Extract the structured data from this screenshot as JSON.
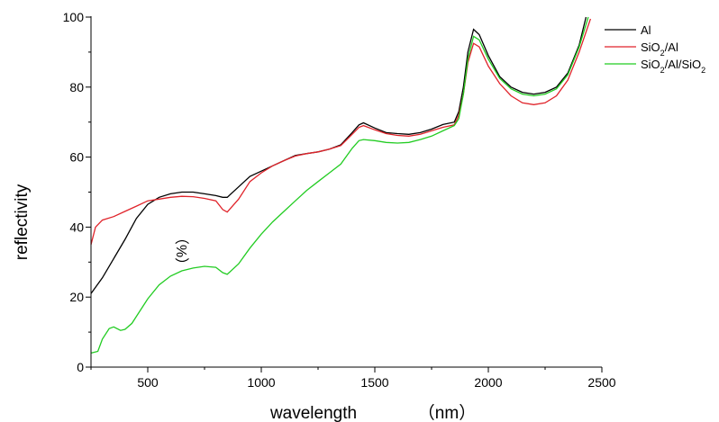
{
  "chart_data": {
    "type": "line",
    "title": "",
    "xlabel": "wavelength",
    "xunit": "（nm）",
    "ylabel": "reflectivity",
    "yunit": "（%）",
    "xlim": [
      250,
      2500
    ],
    "ylim": [
      0,
      100
    ],
    "xticks": [
      500,
      1000,
      1500,
      2000,
      2500
    ],
    "yticks": [
      0,
      20,
      40,
      60,
      80,
      100
    ],
    "grid": false,
    "legend_position": "top-right",
    "series": [
      {
        "name": "Al",
        "color": "#000000",
        "points": [
          [
            250,
            21
          ],
          [
            300,
            25.5
          ],
          [
            350,
            31
          ],
          [
            400,
            36.5
          ],
          [
            450,
            42.5
          ],
          [
            500,
            46.5
          ],
          [
            550,
            48.5
          ],
          [
            600,
            49.5
          ],
          [
            650,
            50
          ],
          [
            700,
            50
          ],
          [
            750,
            49.5
          ],
          [
            800,
            49
          ],
          [
            830,
            48.5
          ],
          [
            850,
            48.5
          ],
          [
            900,
            51.5
          ],
          [
            950,
            54.5
          ],
          [
            1000,
            56
          ],
          [
            1050,
            57.5
          ],
          [
            1100,
            59
          ],
          [
            1150,
            60.5
          ],
          [
            1200,
            61
          ],
          [
            1250,
            61.5
          ],
          [
            1300,
            62.3
          ],
          [
            1350,
            63.5
          ],
          [
            1400,
            67
          ],
          [
            1430,
            69.2
          ],
          [
            1450,
            69.8
          ],
          [
            1500,
            68.3
          ],
          [
            1550,
            67
          ],
          [
            1600,
            66.7
          ],
          [
            1650,
            66.5
          ],
          [
            1700,
            67
          ],
          [
            1750,
            68
          ],
          [
            1800,
            69.3
          ],
          [
            1850,
            70
          ],
          [
            1870,
            73
          ],
          [
            1890,
            80
          ],
          [
            1910,
            90
          ],
          [
            1935,
            96.5
          ],
          [
            1960,
            95
          ],
          [
            2000,
            89
          ],
          [
            2050,
            83
          ],
          [
            2100,
            80
          ],
          [
            2150,
            78.5
          ],
          [
            2200,
            78
          ],
          [
            2250,
            78.5
          ],
          [
            2300,
            80
          ],
          [
            2350,
            84
          ],
          [
            2400,
            92
          ],
          [
            2430,
            100
          ]
        ]
      },
      {
        "name": "SiO2/Al",
        "color": "#e0232a",
        "points": [
          [
            250,
            35
          ],
          [
            270,
            40
          ],
          [
            300,
            42
          ],
          [
            350,
            43
          ],
          [
            400,
            44.5
          ],
          [
            450,
            46
          ],
          [
            500,
            47.5
          ],
          [
            550,
            48
          ],
          [
            600,
            48.5
          ],
          [
            650,
            48.8
          ],
          [
            700,
            48.7
          ],
          [
            750,
            48.2
          ],
          [
            800,
            47.5
          ],
          [
            830,
            45
          ],
          [
            850,
            44.3
          ],
          [
            900,
            48
          ],
          [
            950,
            53
          ],
          [
            1000,
            55.5
          ],
          [
            1050,
            57.5
          ],
          [
            1100,
            59
          ],
          [
            1150,
            60.3
          ],
          [
            1200,
            61
          ],
          [
            1250,
            61.5
          ],
          [
            1300,
            62.3
          ],
          [
            1350,
            63.3
          ],
          [
            1400,
            66.5
          ],
          [
            1430,
            68.5
          ],
          [
            1450,
            69
          ],
          [
            1500,
            67.8
          ],
          [
            1550,
            66.7
          ],
          [
            1600,
            66.2
          ],
          [
            1650,
            66
          ],
          [
            1700,
            66.5
          ],
          [
            1750,
            67.5
          ],
          [
            1800,
            68.5
          ],
          [
            1850,
            69.2
          ],
          [
            1870,
            72
          ],
          [
            1890,
            78
          ],
          [
            1910,
            87
          ],
          [
            1935,
            92.5
          ],
          [
            1960,
            91.5
          ],
          [
            2000,
            86
          ],
          [
            2050,
            81
          ],
          [
            2100,
            77.5
          ],
          [
            2150,
            75.5
          ],
          [
            2200,
            75
          ],
          [
            2250,
            75.5
          ],
          [
            2300,
            77.5
          ],
          [
            2350,
            82
          ],
          [
            2400,
            90
          ],
          [
            2450,
            99.5
          ]
        ]
      },
      {
        "name": "SiO2/Al/SiO2",
        "color": "#22cc22",
        "points": [
          [
            250,
            4
          ],
          [
            280,
            4.5
          ],
          [
            300,
            8
          ],
          [
            330,
            11
          ],
          [
            350,
            11.5
          ],
          [
            380,
            10.5
          ],
          [
            400,
            10.8
          ],
          [
            430,
            12.5
          ],
          [
            450,
            14.5
          ],
          [
            500,
            19.5
          ],
          [
            550,
            23.5
          ],
          [
            600,
            26
          ],
          [
            650,
            27.5
          ],
          [
            700,
            28.3
          ],
          [
            750,
            28.8
          ],
          [
            800,
            28.5
          ],
          [
            830,
            27
          ],
          [
            850,
            26.5
          ],
          [
            900,
            29.5
          ],
          [
            950,
            34
          ],
          [
            1000,
            38
          ],
          [
            1050,
            41.5
          ],
          [
            1100,
            44.5
          ],
          [
            1150,
            47.5
          ],
          [
            1200,
            50.5
          ],
          [
            1250,
            53
          ],
          [
            1300,
            55.5
          ],
          [
            1350,
            58
          ],
          [
            1400,
            62.5
          ],
          [
            1430,
            64.7
          ],
          [
            1450,
            65
          ],
          [
            1500,
            64.7
          ],
          [
            1550,
            64.2
          ],
          [
            1600,
            64
          ],
          [
            1650,
            64.2
          ],
          [
            1700,
            65
          ],
          [
            1750,
            66
          ],
          [
            1800,
            67.5
          ],
          [
            1850,
            69
          ],
          [
            1870,
            71
          ],
          [
            1890,
            78
          ],
          [
            1910,
            88
          ],
          [
            1935,
            94.5
          ],
          [
            1960,
            93.5
          ],
          [
            2000,
            88
          ],
          [
            2050,
            82.5
          ],
          [
            2100,
            79.5
          ],
          [
            2150,
            78
          ],
          [
            2200,
            77.5
          ],
          [
            2250,
            78
          ],
          [
            2300,
            79.5
          ],
          [
            2350,
            83.5
          ],
          [
            2400,
            91.5
          ],
          [
            2440,
            100
          ]
        ]
      }
    ]
  },
  "legend": [
    {
      "base": "Al",
      "parts": [
        {
          "t": "Al",
          "sub": false
        }
      ]
    },
    {
      "base": "SiO2/Al",
      "parts": [
        {
          "t": "SiO",
          "sub": false
        },
        {
          "t": "2",
          "sub": true
        },
        {
          "t": "/Al",
          "sub": false
        }
      ]
    },
    {
      "base": "SiO2/Al/SiO2",
      "parts": [
        {
          "t": "SiO",
          "sub": false
        },
        {
          "t": "2",
          "sub": true
        },
        {
          "t": "/Al/SiO",
          "sub": false
        },
        {
          "t": "2",
          "sub": true
        }
      ]
    }
  ]
}
